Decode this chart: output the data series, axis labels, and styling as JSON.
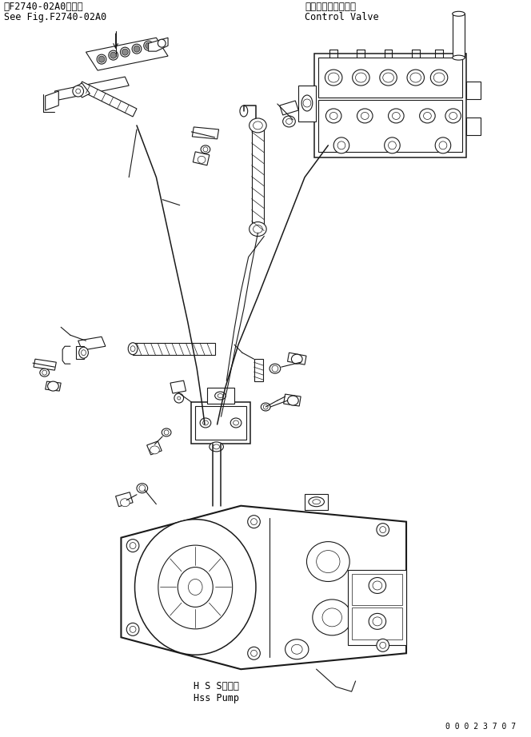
{
  "title_jp1": "第F2740-02A0図参照",
  "title_en1": "See Fig.F2740-02A0",
  "control_valve_jp": "コントロールバルブ",
  "control_valve_en": "Control Valve",
  "hss_pump_jp": "H S Sポンプ",
  "hss_pump_en": "Hss Pump",
  "doc_number": "0 0 0 2 3 7 0 7",
  "bg_color": "#ffffff",
  "line_color": "#1a1a1a",
  "text_color": "#000000",
  "font_size_title": 8.5,
  "font_size_label": 8.5,
  "font_size_doc": 7
}
